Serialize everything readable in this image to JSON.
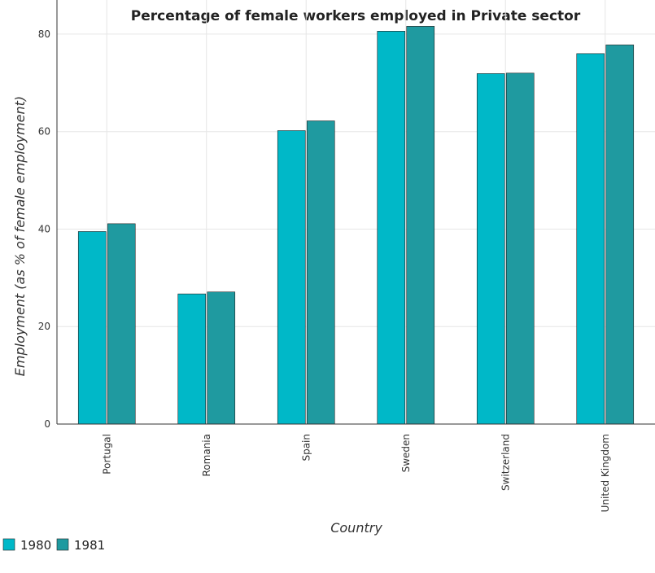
{
  "chart_data": {
    "type": "bar",
    "title": "Percentage of female workers employed in Private sector",
    "xlabel": "Country",
    "ylabel": "Employment (as % of female employment)",
    "categories": [
      "Portugal",
      "Romania",
      "Spain",
      "Sweden",
      "Switzerland",
      "United Kingdom"
    ],
    "series": [
      {
        "name": "1980",
        "color": "#00b8c8",
        "values": [
          39.5,
          26.7,
          60.2,
          80.6,
          71.9,
          76.0
        ]
      },
      {
        "name": "1981",
        "color": "#1f9aa0",
        "values": [
          41.1,
          27.1,
          62.2,
          81.6,
          72.0,
          77.8
        ]
      }
    ],
    "ylim": [
      0,
      87
    ],
    "yticks": [
      0,
      20,
      40,
      60,
      80
    ],
    "grid": true,
    "legend_position": "bottom-left"
  }
}
